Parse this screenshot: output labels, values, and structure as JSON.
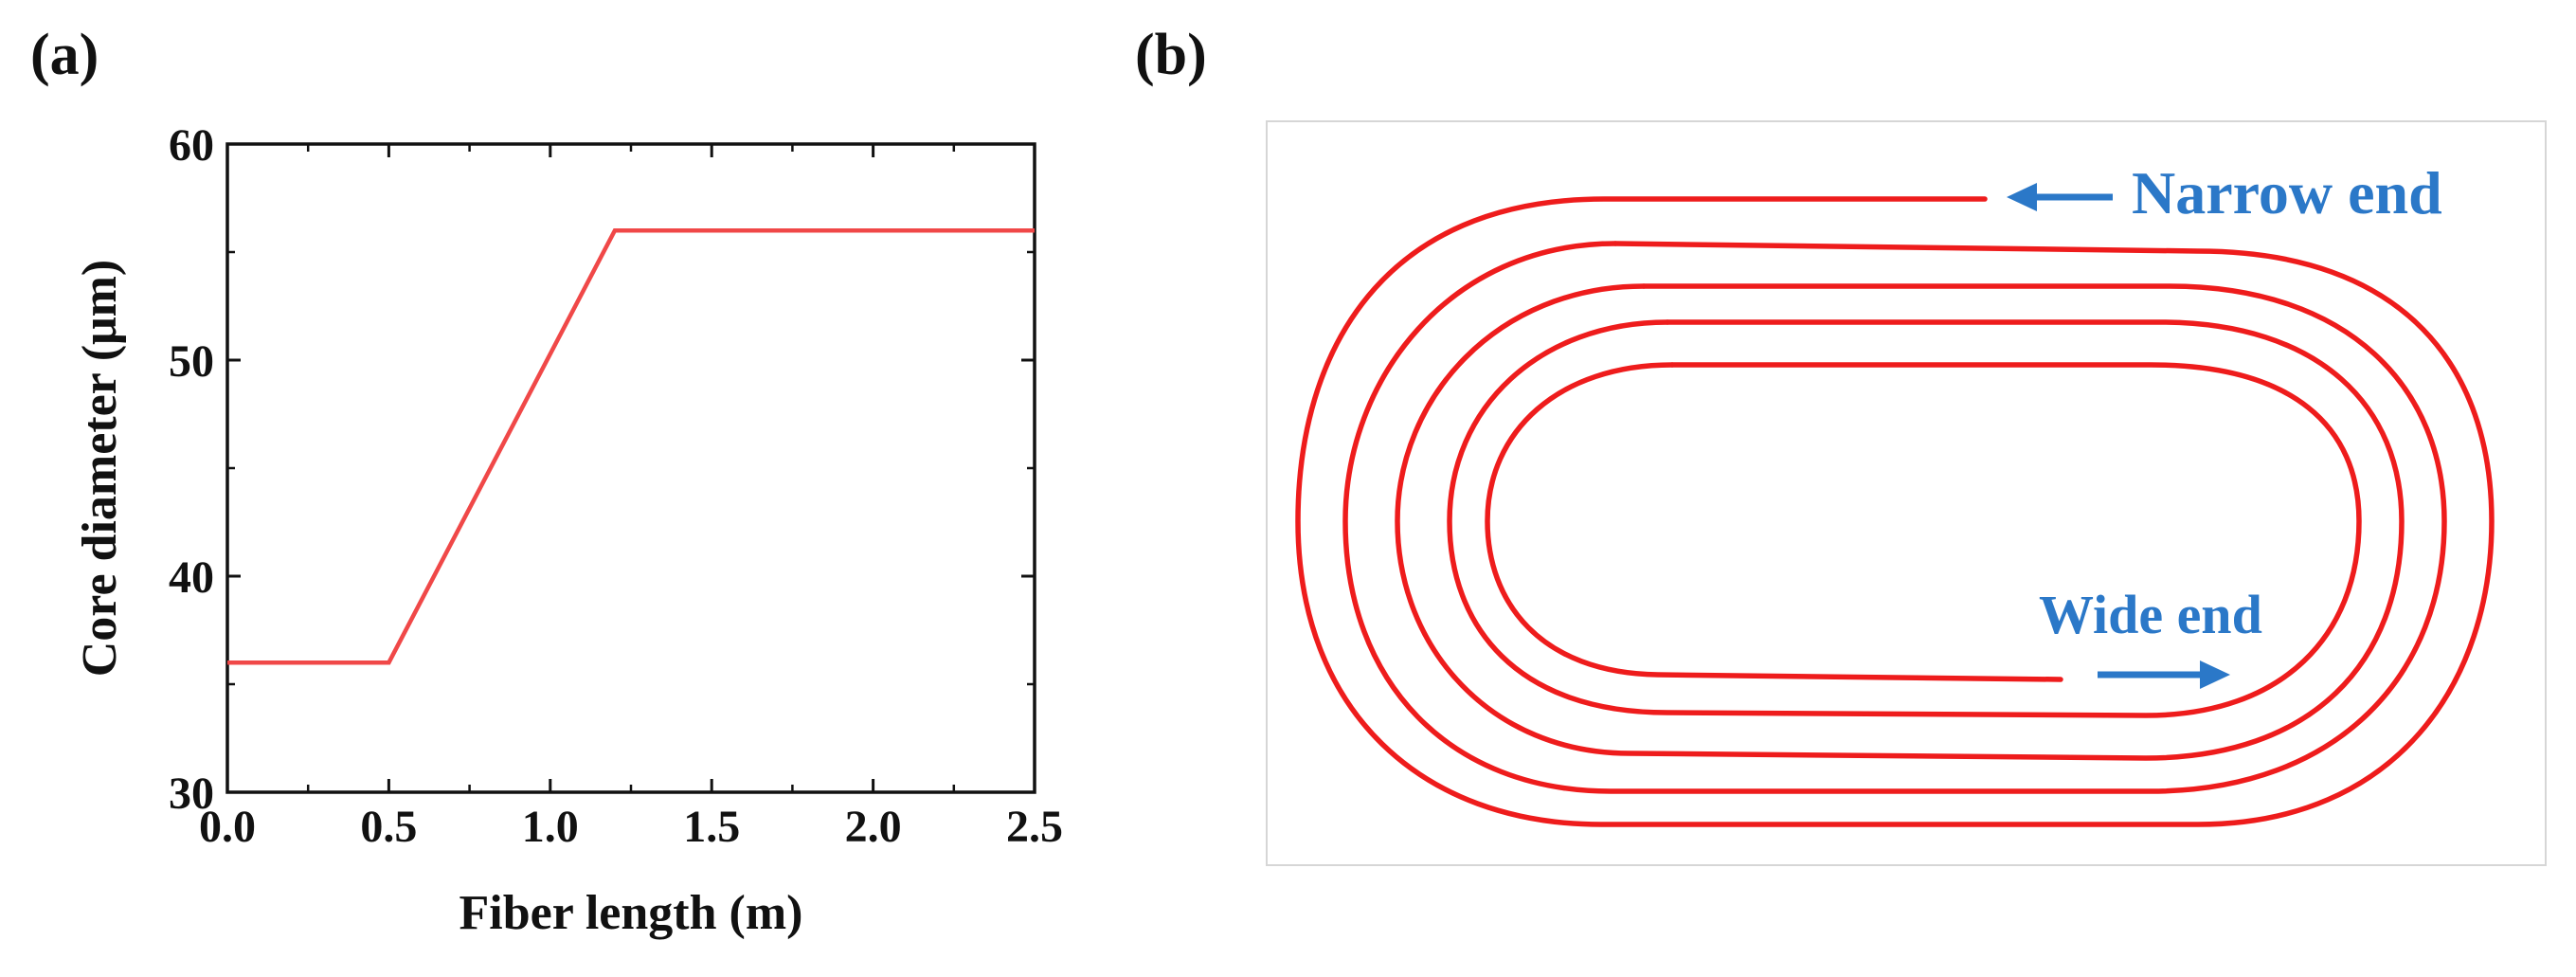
{
  "panels": {
    "a": {
      "label": "(a)"
    },
    "b": {
      "label": "(b)"
    }
  },
  "chart_data": {
    "type": "line",
    "xlabel": "Fiber length (m)",
    "ylabel": "Core diameter (μm)",
    "xlim": [
      0,
      2.5
    ],
    "ylim": [
      30,
      60
    ],
    "xticks": [
      "0.0",
      "0.5",
      "1.0",
      "1.5",
      "2.0",
      "2.5"
    ],
    "yticks": [
      "30",
      "40",
      "50",
      "60"
    ],
    "grid": false,
    "color": "#f04848",
    "series": [
      {
        "x": [
          0.0,
          0.5,
          1.2,
          2.5
        ],
        "y": [
          36,
          36,
          56,
          56
        ]
      }
    ]
  },
  "diagram": {
    "narrow_label": "Narrow end",
    "wide_label": "Wide end",
    "arrow_color": "#2b78c8",
    "coil_color": "#ee1c1c"
  }
}
